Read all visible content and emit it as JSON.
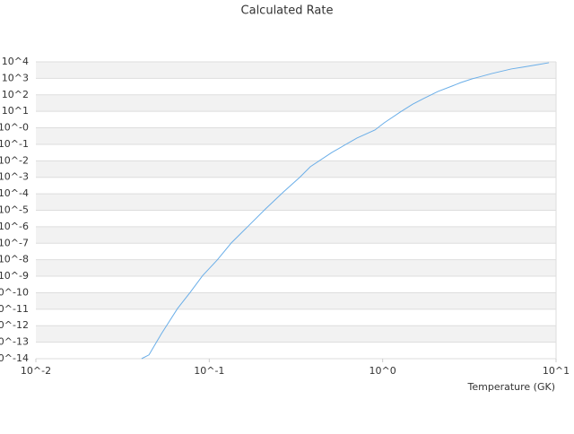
{
  "chart_data": {
    "type": "line",
    "title": "Calculated Rate",
    "x_label": "Temperature (GK)",
    "xscale": "log",
    "yscale": "log",
    "grid": true,
    "xlim": [
      0.01,
      10
    ],
    "xticks": [
      {
        "value": 0.01,
        "label": "10^-2"
      },
      {
        "value": 0.1,
        "label": "10^-1"
      },
      {
        "value": 1,
        "label": "10^0"
      },
      {
        "value": 10,
        "label": "10^1"
      }
    ],
    "ylim": [
      1e-14,
      10000
    ],
    "yticks": [
      {
        "value": 10000,
        "label": "10^4"
      },
      {
        "value": 1000,
        "label": "10^3"
      },
      {
        "value": 100,
        "label": "10^2"
      },
      {
        "value": 10,
        "label": "10^1"
      },
      {
        "value": 1,
        "label": "10^-0"
      },
      {
        "value": 0.1,
        "label": "10^-1"
      },
      {
        "value": 0.01,
        "label": "10^-2"
      },
      {
        "value": 0.001,
        "label": "10^-3"
      },
      {
        "value": 0.0001,
        "label": "10^-4"
      },
      {
        "value": 1e-05,
        "label": "10^-5"
      },
      {
        "value": 1e-06,
        "label": "10^-6"
      },
      {
        "value": 1e-07,
        "label": "10^-7"
      },
      {
        "value": 1e-08,
        "label": "10^-8"
      },
      {
        "value": 1e-09,
        "label": "10^-9"
      },
      {
        "value": 1e-10,
        "label": "10^-10"
      },
      {
        "value": 1e-11,
        "label": "10^-11"
      },
      {
        "value": 1e-12,
        "label": "10^-12"
      },
      {
        "value": 1e-13,
        "label": "10^-13"
      },
      {
        "value": 1e-14,
        "label": "10^-14"
      }
    ],
    "x": [
      0.0407,
      0.0449,
      0.053,
      0.0656,
      0.0776,
      0.0916,
      0.111,
      0.134,
      0.166,
      0.211,
      0.268,
      0.332,
      0.383,
      0.509,
      0.711,
      0.902,
      1.02,
      1.26,
      1.49,
      1.72,
      2.08,
      2.51,
      2.83,
      3.27,
      3.59,
      4.25,
      5.51,
      6.37,
      7.89,
      9.1
    ],
    "series": [
      {
        "color": "#6aaee8",
        "values": [
          1e-14,
          1.7e-14,
          3.3e-13,
          1.1e-11,
          1.05e-10,
          1.1e-09,
          9.5e-09,
          1.05e-07,
          9.8e-07,
          1.2e-05,
          0.00013,
          0.00098,
          0.0044,
          0.032,
          0.24,
          0.74,
          2,
          8.9,
          27,
          59,
          160,
          340,
          560,
          930,
          1200,
          1950,
          3700,
          4700,
          6900,
          8900
        ]
      }
    ]
  }
}
